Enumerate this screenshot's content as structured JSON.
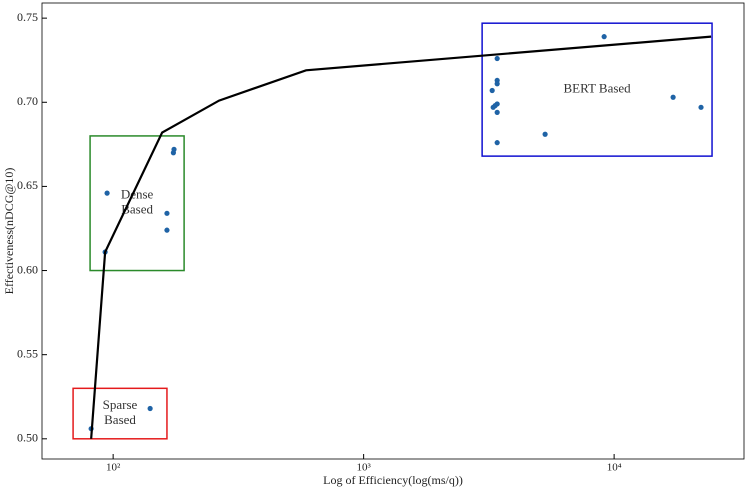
{
  "chart_data": {
    "type": "scatter",
    "x_label": "Log of Efficiency(log(ms/q))",
    "y_label": "Effectiveness(nDCG@10)",
    "x_scale": "log",
    "xlim": [
      52,
      33000
    ],
    "ylim": [
      0.488,
      0.759
    ],
    "xticks": [
      {
        "value": 100,
        "label": "10²"
      },
      {
        "value": 1000,
        "label": "10³"
      },
      {
        "value": 10000,
        "label": "10⁴"
      }
    ],
    "yticks": [
      {
        "value": 0.5,
        "label": "0.50"
      },
      0.55,
      {
        "value": 0.6,
        "label": "0.60"
      },
      0.65,
      {
        "value": 0.7,
        "label": "0.70"
      },
      0.75
    ],
    "series": [
      {
        "type": "scatter",
        "color": "#1f63a6",
        "x": [
          81.7,
          140.5,
          94.6,
          92.9,
          164,
          164,
          175,
          174,
          3413,
          3413,
          3413,
          3260,
          3413,
          3350,
          3290,
          3413,
          3413,
          5303,
          9124,
          17200,
          22230
        ],
        "values": [
          0.506,
          0.518,
          0.646,
          0.611,
          0.634,
          0.624,
          0.672,
          0.67,
          0.726,
          0.713,
          0.711,
          0.707,
          0.699,
          0.698,
          0.697,
          0.694,
          0.676,
          0.681,
          0.739,
          0.703,
          0.697
        ]
      },
      {
        "type": "line",
        "color": "#000000",
        "x": [
          81.7,
          92.9,
          156.9,
          264.8,
          589,
          24380
        ],
        "values": [
          0.5,
          0.611,
          0.682,
          0.701,
          0.719,
          0.739
        ]
      }
    ],
    "regions": [
      {
        "lines": [
          "Sparse",
          "Based"
        ],
        "color": "#e41a1c",
        "x": [
          69.2,
          164
        ],
        "y": [
          0.5,
          0.53
        ]
      },
      {
        "lines": [
          "Dense",
          "Based"
        ],
        "color": "#2a8a2a",
        "x": [
          80.9,
          192
        ],
        "y": [
          0.6,
          0.68
        ]
      },
      {
        "lines": [
          "BERT Based"
        ],
        "color": "#1010d0",
        "x": [
          2972,
          24600
        ],
        "y": [
          0.668,
          0.747
        ]
      }
    ]
  }
}
